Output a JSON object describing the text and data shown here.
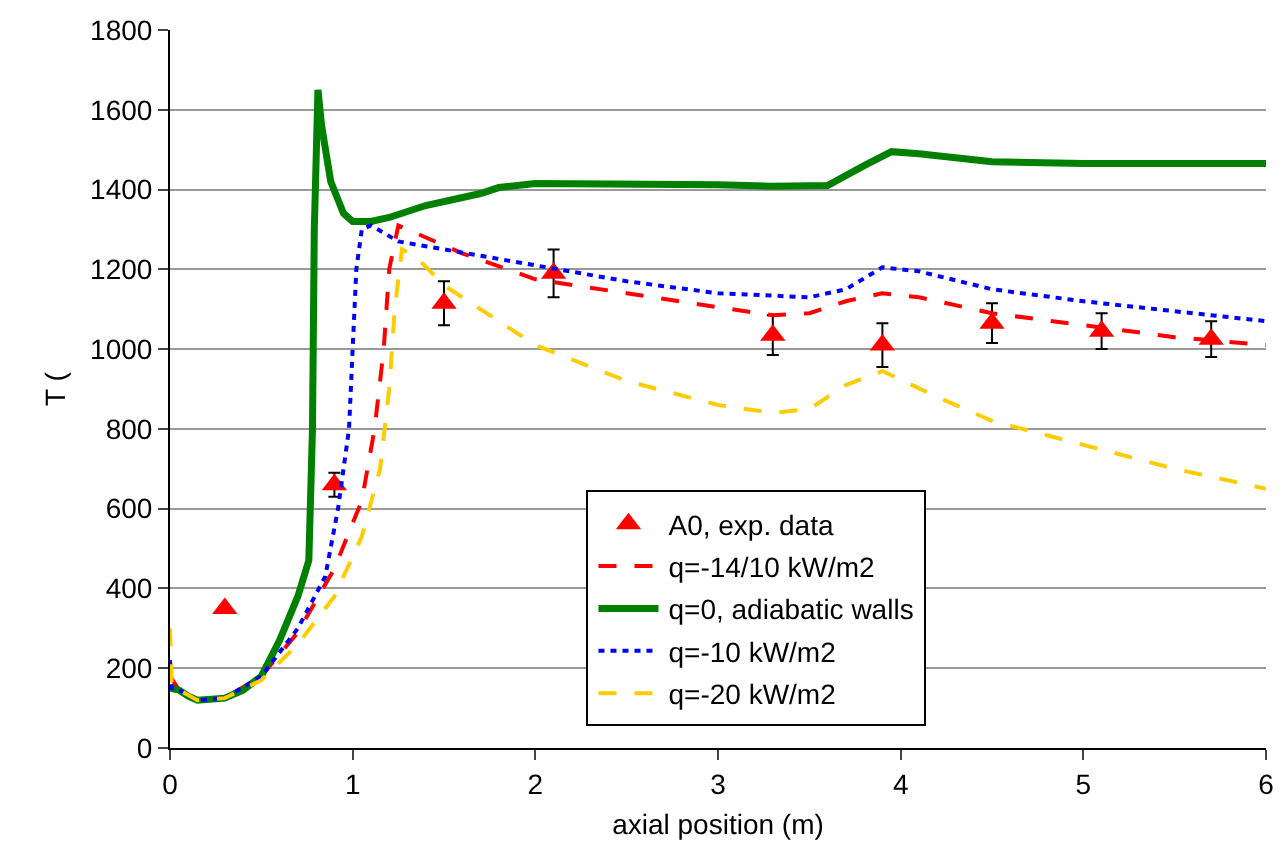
{
  "chart_data": {
    "type": "line",
    "xlabel": "axial position (m)",
    "ylabel": "T (",
    "xlim": [
      0,
      6
    ],
    "xticks": [
      0,
      1,
      2,
      3,
      4,
      5,
      6
    ],
    "ylim": [
      0,
      1800
    ],
    "yticks": [
      0,
      200,
      400,
      600,
      800,
      1000,
      1200,
      1400,
      1600,
      1800
    ],
    "grid": "y",
    "legend": "bottom center",
    "series": [
      {
        "name": "A0, exp. data",
        "type": "scatter",
        "marker": "triangle",
        "color": "#ff0000",
        "x": [
          0.3,
          0.9,
          1.5,
          2.1,
          3.3,
          3.9,
          4.5,
          5.1,
          5.7
        ],
        "values": [
          350,
          660,
          1115,
          1190,
          1035,
          1010,
          1065,
          1045,
          1025
        ],
        "errors": [
          null,
          30,
          55,
          60,
          50,
          55,
          50,
          45,
          45
        ]
      },
      {
        "name": "q=-14/10 kW/m2",
        "color": "#ff0000",
        "line_style": "dashed",
        "x": [
          0,
          0.05,
          0.15,
          0.3,
          0.5,
          0.7,
          0.9,
          1.05,
          1.12,
          1.17,
          1.2,
          1.25,
          1.35,
          1.6,
          2,
          2.5,
          3,
          3.3,
          3.5,
          3.7,
          3.9,
          4.1,
          4.5,
          5,
          5.5,
          6
        ],
        "values": [
          180,
          145,
          120,
          125,
          180,
          290,
          450,
          620,
          800,
          1000,
          1200,
          1310,
          1290,
          1240,
          1175,
          1140,
          1105,
          1085,
          1090,
          1120,
          1140,
          1130,
          1090,
          1060,
          1030,
          1010
        ]
      },
      {
        "name": "q=0, adiabatic walls",
        "color": "#008000",
        "line_style": "solid",
        "x": [
          0,
          0.05,
          0.1,
          0.15,
          0.3,
          0.4,
          0.5,
          0.6,
          0.7,
          0.76,
          0.78,
          0.79,
          0.81,
          0.83,
          0.88,
          0.95,
          1.0,
          1.1,
          1.2,
          1.4,
          1.7,
          1.8,
          2.0,
          3.0,
          3.3,
          3.6,
          3.8,
          3.95,
          4.1,
          4.5,
          5,
          6
        ],
        "values": [
          150,
          145,
          130,
          120,
          125,
          145,
          180,
          270,
          380,
          470,
          800,
          1300,
          1650,
          1560,
          1420,
          1340,
          1320,
          1320,
          1330,
          1360,
          1390,
          1405,
          1415,
          1412,
          1408,
          1410,
          1460,
          1495,
          1490,
          1470,
          1465,
          1465
        ]
      },
      {
        "name": "q=-10 kW/m2",
        "color": "#0000ff",
        "line_style": "dotted",
        "x": [
          0,
          0.01,
          0.05,
          0.15,
          0.3,
          0.5,
          0.7,
          0.85,
          0.92,
          0.98,
          1.0,
          1.02,
          1.05,
          1.1,
          1.25,
          1.5,
          2,
          2.5,
          3,
          3.5,
          3.7,
          3.9,
          4.1,
          4.5,
          5,
          5.5,
          6
        ],
        "values": [
          220,
          150,
          145,
          120,
          125,
          180,
          300,
          430,
          600,
          800,
          1000,
          1200,
          1300,
          1310,
          1270,
          1250,
          1210,
          1170,
          1140,
          1130,
          1150,
          1205,
          1195,
          1150,
          1120,
          1095,
          1070
        ]
      },
      {
        "name": "q=-20 kW/m2",
        "color": "#ffcc00",
        "line_style": "dashed",
        "x": [
          0,
          0.01,
          0.05,
          0.15,
          0.3,
          0.5,
          0.7,
          0.9,
          1.05,
          1.15,
          1.2,
          1.23,
          1.27,
          1.35,
          1.5,
          2,
          2.5,
          3,
          3.3,
          3.5,
          3.7,
          3.9,
          4.2,
          4.5,
          5,
          5.5,
          6
        ],
        "values": [
          300,
          150,
          145,
          120,
          125,
          170,
          260,
          380,
          530,
          700,
          900,
          1100,
          1250,
          1230,
          1160,
          1010,
          920,
          860,
          840,
          850,
          910,
          945,
          880,
          820,
          760,
          700,
          650
        ]
      }
    ]
  }
}
